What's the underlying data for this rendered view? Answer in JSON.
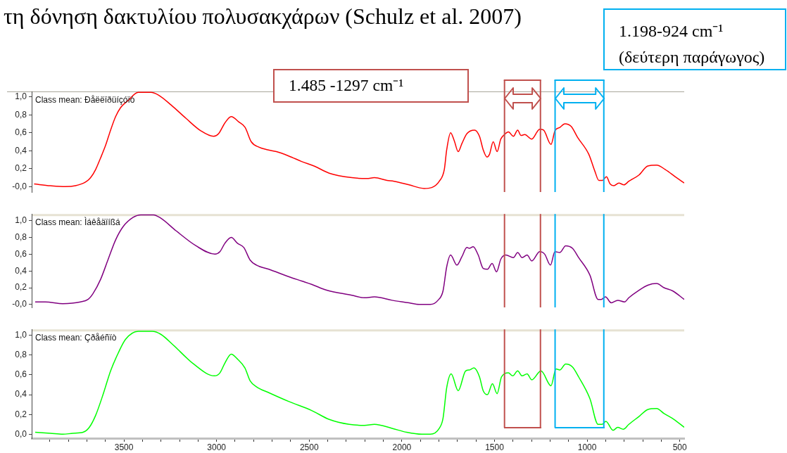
{
  "chart_data": [
    {
      "type": "line",
      "title": "Class mean: Ðåëëïðüíçóïò",
      "annotations": [
        "τη δόνηση δακτυλίου πολυσακχάρων (Schulz et al. 2007)",
        "1.485 -1297 cm⁻¹",
        "1.198-924 cm⁻¹ (δεύτερη παράγωγος)"
      ],
      "x": [
        3985,
        3897,
        3816,
        3762,
        3708,
        3680,
        3653,
        3626,
        3599,
        3572,
        3545,
        3518,
        3477,
        3423,
        3355,
        3314,
        3246,
        3165,
        3084,
        3016,
        2989,
        2955,
        2921,
        2880,
        2846,
        2813,
        2772,
        2724,
        2677,
        2609,
        2541,
        2474,
        2392,
        2270,
        2189,
        2148,
        2080,
        2042,
        1961,
        1880,
        1839,
        1798,
        1771,
        1758,
        1737,
        1717,
        1696,
        1676,
        1649,
        1608,
        1581,
        1561,
        1541,
        1527,
        1507,
        1486,
        1466,
        1446,
        1425,
        1398,
        1375,
        1357,
        1337,
        1299,
        1256,
        1235,
        1195,
        1174,
        1147,
        1120,
        1086,
        1052,
        991,
        958,
        937,
        917,
        896,
        876,
        856,
        829,
        801,
        775,
        720,
        673,
        625,
        578,
        524,
        476
      ],
      "series": [
        {
          "color": "#ff0000",
          "values": [
            0.03,
            0.01,
            0,
            0.01,
            0.05,
            0.1,
            0.19,
            0.32,
            0.46,
            0.63,
            0.78,
            0.88,
            0.96,
            1.05,
            1.05,
            1.02,
            0.91,
            0.76,
            0.62,
            0.56,
            0.59,
            0.71,
            0.78,
            0.72,
            0.66,
            0.5,
            0.44,
            0.41,
            0.39,
            0.34,
            0.28,
            0.23,
            0.15,
            0.1,
            0.09,
            0.1,
            0.07,
            0.06,
            0.02,
            -0.02,
            -0.01,
            0.06,
            0.19,
            0.41,
            0.6,
            0.51,
            0.39,
            0.48,
            0.59,
            0.63,
            0.56,
            0.41,
            0.33,
            0.36,
            0.5,
            0.39,
            0.53,
            0.58,
            0.61,
            0.56,
            0.63,
            0.57,
            0.58,
            0.53,
            0.64,
            0.63,
            0.47,
            0.62,
            0.66,
            0.7,
            0.67,
            0.55,
            0.36,
            0.17,
            0.07,
            0.07,
            0.11,
            0.03,
            0.01,
            0.04,
            0.02,
            0.06,
            0.13,
            0.23,
            0.24,
            0.19,
            0.11,
            0.04
          ]
        }
      ],
      "xlim": [
        3998,
        476
      ],
      "ylim": [
        -0.06,
        1.06
      ],
      "yticks": [
        {
          "value": 0,
          "label": "-0,0"
        },
        {
          "value": 0.2,
          "label": "0,2"
        },
        {
          "value": 0.4,
          "label": "0,4"
        },
        {
          "value": 0.6,
          "label": "0,6"
        },
        {
          "value": 0.8,
          "label": "0,8"
        },
        {
          "value": 1,
          "label": "1,0"
        }
      ],
      "tick_labels": "y",
      "ref_lines": [
        {
          "axis": "x",
          "value": 1446,
          "color": "#c0504d"
        },
        {
          "axis": "x",
          "value": 1252,
          "color": "#c0504d"
        },
        {
          "axis": "x",
          "value": 1173,
          "color": "#00b0f0"
        },
        {
          "axis": "x",
          "value": 910,
          "color": "#00b0f0"
        }
      ]
    },
    {
      "type": "line",
      "title": "Class mean: Ìáêåäïíßá",
      "x": [
        3979,
        3924,
        3830,
        3735,
        3694,
        3667,
        3626,
        3585,
        3545,
        3504,
        3450,
        3409,
        3341,
        3301,
        3219,
        3111,
        3009,
        2982,
        2955,
        2921,
        2887,
        2853,
        2819,
        2785,
        2718,
        2609,
        2541,
        2487,
        2406,
        2270,
        2202,
        2148,
        2053,
        1961,
        1907,
        1846,
        1805,
        1778,
        1758,
        1737,
        1703,
        1676,
        1649,
        1636,
        1615,
        1588,
        1561,
        1538,
        1513,
        1489,
        1466,
        1439,
        1398,
        1375,
        1351,
        1324,
        1299,
        1256,
        1229,
        1198,
        1174,
        1147,
        1116,
        1079,
        1046,
        985,
        941,
        924,
        901,
        870,
        835,
        798,
        775,
        720,
        673,
        625,
        585,
        537,
        476
      ],
      "series": [
        {
          "color": "#800080",
          "values": [
            0.03,
            0.03,
            0.01,
            0.03,
            0.06,
            0.13,
            0.3,
            0.54,
            0.77,
            0.93,
            1.04,
            1.07,
            1.07,
            1.03,
            0.88,
            0.7,
            0.6,
            0.63,
            0.73,
            0.8,
            0.73,
            0.68,
            0.53,
            0.47,
            0.42,
            0.33,
            0.28,
            0.24,
            0.17,
            0.11,
            0.08,
            0.09,
            0.05,
            0.02,
            0,
            0,
            0.05,
            0.16,
            0.45,
            0.59,
            0.47,
            0.57,
            0.68,
            0.67,
            0.69,
            0.59,
            0.43,
            0.42,
            0.49,
            0.39,
            0.54,
            0.59,
            0.56,
            0.62,
            0.56,
            0.59,
            0.52,
            0.63,
            0.6,
            0.47,
            0.63,
            0.62,
            0.7,
            0.67,
            0.56,
            0.35,
            0.06,
            0.06,
            0.09,
            0.02,
            0.05,
            0.03,
            0.08,
            0.17,
            0.23,
            0.25,
            0.2,
            0.16,
            0.06
          ]
        }
      ],
      "xlim": [
        3998,
        476
      ],
      "ylim": [
        -0.035,
        1.08
      ],
      "yticks": [
        {
          "value": 0,
          "label": "-0,0"
        },
        {
          "value": 0.2,
          "label": "0,2"
        },
        {
          "value": 0.4,
          "label": "0,4"
        },
        {
          "value": 0.6,
          "label": "0,6"
        },
        {
          "value": 0.8,
          "label": "0,8"
        },
        {
          "value": 1,
          "label": "1,0"
        }
      ],
      "tick_labels": "y",
      "ref_lines": [
        {
          "axis": "x",
          "value": 1446,
          "color": "#c0504d"
        },
        {
          "axis": "x",
          "value": 1252,
          "color": "#c0504d"
        },
        {
          "axis": "x",
          "value": 1173,
          "color": "#00b0f0"
        },
        {
          "axis": "x",
          "value": 910,
          "color": "#00b0f0"
        }
      ]
    },
    {
      "type": "line",
      "title": "Class mean: Çðåéñïò",
      "x": [
        3979,
        3897,
        3830,
        3775,
        3721,
        3687,
        3653,
        3613,
        3572,
        3531,
        3491,
        3423,
        3348,
        3301,
        3233,
        3124,
        3012,
        2982,
        2955,
        2921,
        2887,
        2847,
        2819,
        2785,
        2718,
        2609,
        2487,
        2392,
        2284,
        2202,
        2148,
        2053,
        1974,
        1893,
        1846,
        1798,
        1778,
        1758,
        1734,
        1696,
        1656,
        1636,
        1611,
        1581,
        1561,
        1538,
        1511,
        1486,
        1462,
        1425,
        1402,
        1375,
        1351,
        1324,
        1299,
        1249,
        1195,
        1168,
        1147,
        1116,
        1079,
        1046,
        985,
        941,
        920,
        899,
        860,
        835,
        805,
        775,
        720,
        673,
        625,
        585,
        531,
        476
      ],
      "series": [
        {
          "color": "#00ff00",
          "values": [
            0.02,
            0.01,
            0,
            0.01,
            0.02,
            0.07,
            0.19,
            0.4,
            0.64,
            0.82,
            0.96,
            1.04,
            1.04,
            1.01,
            0.9,
            0.71,
            0.59,
            0.62,
            0.72,
            0.81,
            0.76,
            0.67,
            0.54,
            0.48,
            0.42,
            0.33,
            0.24,
            0.15,
            0.1,
            0.09,
            0.1,
            0.06,
            0.02,
            0,
            0,
            0.06,
            0.16,
            0.47,
            0.61,
            0.44,
            0.64,
            0.65,
            0.67,
            0.58,
            0.44,
            0.4,
            0.51,
            0.41,
            0.58,
            0.62,
            0.59,
            0.64,
            0.59,
            0.61,
            0.55,
            0.64,
            0.49,
            0.66,
            0.65,
            0.71,
            0.68,
            0.58,
            0.36,
            0.1,
            0.1,
            0.13,
            0.04,
            0.07,
            0.05,
            0.1,
            0.18,
            0.25,
            0.26,
            0.21,
            0.15,
            0.07
          ]
        }
      ],
      "xlim": [
        3998,
        476
      ],
      "ylim": [
        -0.04,
        1.06
      ],
      "xticks": [
        {
          "value": 3900,
          "label": null
        },
        {
          "value": 3800,
          "label": null
        },
        {
          "value": 3700,
          "label": null
        },
        {
          "value": 3600,
          "label": null
        },
        3500,
        {
          "value": 3400,
          "label": null
        },
        {
          "value": 3300,
          "label": null
        },
        {
          "value": 3200,
          "label": null
        },
        {
          "value": 3100,
          "label": null
        },
        3000,
        {
          "value": 2900,
          "label": null
        },
        {
          "value": 2800,
          "label": null
        },
        {
          "value": 2700,
          "label": null
        },
        {
          "value": 2600,
          "label": null
        },
        2500,
        {
          "value": 2400,
          "label": null
        },
        {
          "value": 2300,
          "label": null
        },
        {
          "value": 2200,
          "label": null
        },
        {
          "value": 2100,
          "label": null
        },
        2000,
        {
          "value": 1900,
          "label": null
        },
        {
          "value": 1800,
          "label": null
        },
        {
          "value": 1700,
          "label": null
        },
        {
          "value": 1600,
          "label": null
        },
        1500,
        {
          "value": 1400,
          "label": null
        },
        {
          "value": 1300,
          "label": null
        },
        {
          "value": 1200,
          "label": null
        },
        {
          "value": 1100,
          "label": null
        },
        1000,
        {
          "value": 900,
          "label": null
        },
        {
          "value": 800,
          "label": null
        },
        {
          "value": 700,
          "label": null
        },
        {
          "value": 600,
          "label": null
        },
        500
      ],
      "yticks": [
        {
          "value": 0,
          "label": "0,0"
        },
        {
          "value": 0.2,
          "label": "0,2"
        },
        {
          "value": 0.4,
          "label": "0,4"
        },
        {
          "value": 0.6,
          "label": "0,6"
        },
        {
          "value": 0.8,
          "label": "0,8"
        },
        {
          "value": 1,
          "label": "1,0"
        }
      ],
      "ref_lines": [
        {
          "axis": "x",
          "value": 1446,
          "color": "#c0504d"
        },
        {
          "axis": "x",
          "value": 1252,
          "color": "#c0504d"
        },
        {
          "axis": "x",
          "value": 1173,
          "color": "#00b0f0"
        },
        {
          "axis": "x",
          "value": 910,
          "color": "#00b0f0"
        }
      ]
    }
  ]
}
